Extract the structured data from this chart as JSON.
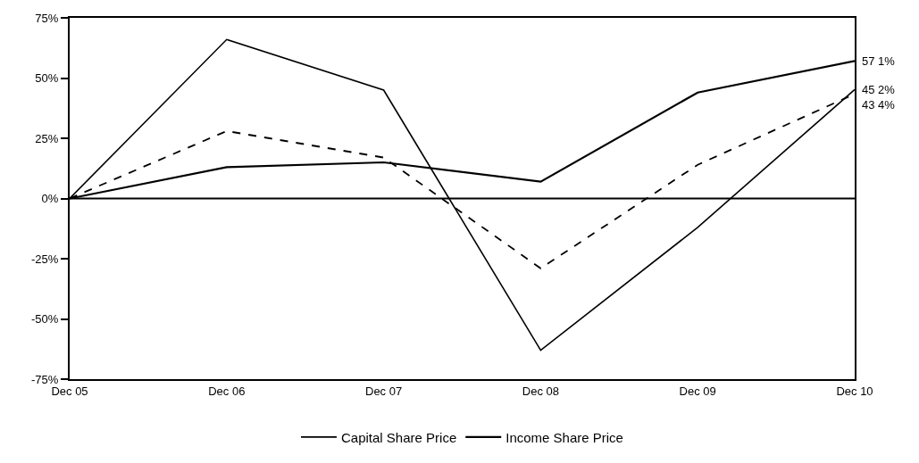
{
  "chart_data": {
    "type": "line",
    "categories": [
      "Dec 05",
      "Dec 06",
      "Dec 07",
      "Dec 08",
      "Dec 09",
      "Dec 10"
    ],
    "series": [
      {
        "name": "Capital Share Price",
        "color": "#000000",
        "values": [
          0,
          66,
          45,
          -63,
          -12,
          45.2
        ],
        "value_labels": [
          null,
          null,
          null,
          null,
          null,
          "45 2%"
        ]
      },
      {
        "name": "Income Share Price",
        "color": "#000000",
        "values": [
          0,
          13,
          15,
          7,
          44,
          57.1
        ],
        "value_labels": [
          null,
          null,
          null,
          null,
          null,
          "57 1%"
        ]
      },
      {
        "color": "#000000",
        "line_style": "dashed",
        "values": [
          0,
          28,
          17,
          -29,
          14,
          43.4
        ],
        "value_labels": [
          null,
          null,
          null,
          null,
          null,
          "43 4%"
        ]
      }
    ],
    "ylim": [
      -75,
      75
    ],
    "yticks": [
      {
        "value": -75,
        "label": "-75%"
      },
      {
        "value": -50,
        "label": "-50%"
      },
      {
        "value": -25,
        "label": "-25%"
      },
      {
        "value": 0,
        "label": "0%"
      },
      {
        "value": 25,
        "label": "25%"
      },
      {
        "value": 50,
        "label": "50%"
      },
      {
        "value": 75,
        "label": "75%"
      }
    ],
    "ref_lines": [
      {
        "axis": "y",
        "value": 0,
        "color": "#000000"
      }
    ],
    "grid": false,
    "legend": "bottom",
    "marker": "none",
    "line_style": "solid"
  }
}
